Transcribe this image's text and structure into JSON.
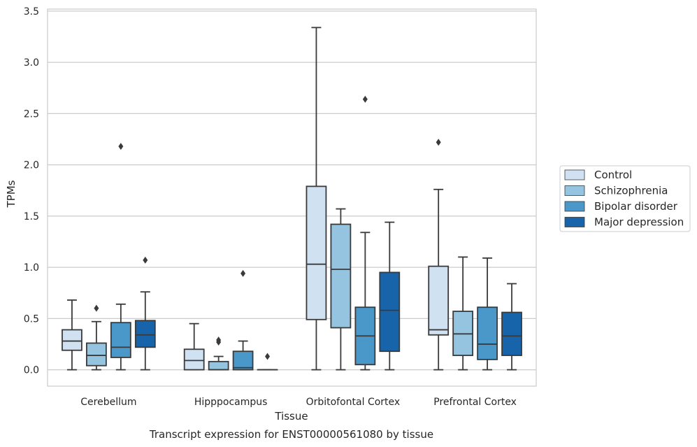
{
  "chart_data": {
    "type": "box",
    "title": "",
    "caption": "Transcript expression for ENST00000561080 by tissue",
    "xlabel": "Tissue",
    "ylabel": "TPMs",
    "ylim": [
      -0.16,
      3.52
    ],
    "yticks": [
      "0.0",
      "0.5",
      "1.0",
      "1.5",
      "2.0",
      "2.5",
      "3.0",
      "3.5"
    ],
    "grid": true,
    "legend_position": "right",
    "categories": [
      "Cerebellum",
      "Hipppocampus",
      "Orbitofontal Cortex",
      "Prefrontal Cortex"
    ],
    "series": [
      {
        "name": "Control",
        "color": "#d0e1f2",
        "boxes": [
          {
            "whislo": 0.0,
            "q1": 0.19,
            "med": 0.28,
            "q3": 0.39,
            "whishi": 0.68,
            "fliers": []
          },
          {
            "whislo": 0.0,
            "q1": 0.0,
            "med": 0.09,
            "q3": 0.2,
            "whishi": 0.45,
            "fliers": []
          },
          {
            "whislo": 0.0,
            "q1": 0.49,
            "med": 1.03,
            "q3": 1.79,
            "whishi": 3.34,
            "fliers": []
          },
          {
            "whislo": 0.0,
            "q1": 0.34,
            "med": 0.39,
            "q3": 1.01,
            "whishi": 1.76,
            "fliers": [
              2.22
            ]
          }
        ]
      },
      {
        "name": "Schizophrenia",
        "color": "#94c4df",
        "boxes": [
          {
            "whislo": 0.0,
            "q1": 0.04,
            "med": 0.14,
            "q3": 0.26,
            "whishi": 0.47,
            "fliers": [
              0.6
            ]
          },
          {
            "whislo": 0.0,
            "q1": 0.0,
            "med": 0.0,
            "q3": 0.08,
            "whishi": 0.13,
            "fliers": [
              0.27,
              0.29
            ]
          },
          {
            "whislo": 0.0,
            "q1": 0.41,
            "med": 0.98,
            "q3": 1.42,
            "whishi": 1.57,
            "fliers": []
          },
          {
            "whislo": 0.0,
            "q1": 0.14,
            "med": 0.35,
            "q3": 0.57,
            "whishi": 1.1,
            "fliers": []
          }
        ]
      },
      {
        "name": "Bipolar disorder",
        "color": "#4a98c9",
        "boxes": [
          {
            "whislo": 0.0,
            "q1": 0.12,
            "med": 0.22,
            "q3": 0.46,
            "whishi": 0.64,
            "fliers": [
              2.18
            ]
          },
          {
            "whislo": 0.0,
            "q1": 0.0,
            "med": 0.02,
            "q3": 0.18,
            "whishi": 0.28,
            "fliers": [
              0.94
            ]
          },
          {
            "whislo": 0.0,
            "q1": 0.05,
            "med": 0.33,
            "q3": 0.61,
            "whishi": 1.34,
            "fliers": [
              2.64
            ]
          },
          {
            "whislo": 0.0,
            "q1": 0.1,
            "med": 0.25,
            "q3": 0.61,
            "whishi": 1.09,
            "fliers": []
          }
        ]
      },
      {
        "name": "Major depression",
        "color": "#1764ab",
        "boxes": [
          {
            "whislo": 0.0,
            "q1": 0.22,
            "med": 0.34,
            "q3": 0.48,
            "whishi": 0.76,
            "fliers": [
              1.07
            ]
          },
          {
            "whislo": 0.0,
            "q1": 0.0,
            "med": 0.0,
            "q3": 0.0,
            "whishi": 0.0,
            "fliers": [
              0.13
            ]
          },
          {
            "whislo": 0.0,
            "q1": 0.18,
            "med": 0.58,
            "q3": 0.95,
            "whishi": 1.44,
            "fliers": []
          },
          {
            "whislo": 0.0,
            "q1": 0.14,
            "med": 0.33,
            "q3": 0.56,
            "whishi": 0.84,
            "fliers": []
          }
        ]
      }
    ]
  }
}
